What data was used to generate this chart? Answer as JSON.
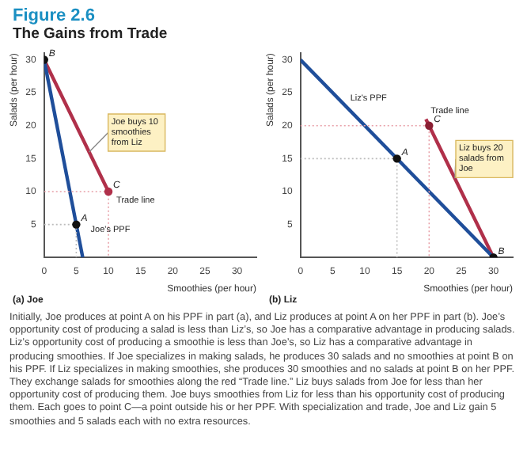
{
  "chart_data": [
    {
      "type": "line",
      "title": "Figure 2.6",
      "subtitle": "The Gains from Trade",
      "xlabel": "Smoothies (per hour)",
      "ylabel": "Salads (per hour)",
      "xlim": [
        0,
        33
      ],
      "ylim": [
        0,
        31
      ],
      "xticks": [
        0,
        5,
        10,
        15,
        20,
        25,
        30
      ],
      "yticks": [
        5,
        10,
        15,
        20,
        25,
        30
      ],
      "grid": false,
      "legend": false,
      "marker": "none",
      "series": [
        {
          "x": [
            0,
            5,
            5
          ],
          "values": [
            5,
            5,
            0
          ],
          "color": "#bbbbbb",
          "line_style": "dotted"
        },
        {
          "x": [
            0,
            10,
            10
          ],
          "values": [
            10,
            10,
            0
          ],
          "color": "#e8a0a8",
          "line_style": "dotted"
        },
        {
          "x": [
            0,
            6
          ],
          "values": [
            30,
            0
          ],
          "color": "#1f4e9a"
        },
        {
          "x": [
            0,
            10
          ],
          "values": [
            30,
            10
          ],
          "color": "#b0304a"
        },
        {
          "type": "scatter",
          "marker": "circle",
          "x": [
            5,
            0,
            10
          ],
          "values": [
            5,
            30,
            10
          ],
          "colors": [
            "#111111",
            "#111111",
            "#b0304a"
          ]
        }
      ],
      "annotations": [
        "(a) Joe",
        {
          "text": "A",
          "x": 5,
          "y": 5
        },
        {
          "text": "B",
          "x": 0,
          "y": 30
        },
        {
          "text": "C",
          "x": 10,
          "y": 10
        },
        {
          "text": "Joe buys 10 smoothies from Liz",
          "x": 7,
          "y": 16
        },
        {
          "text": "Trade line",
          "x": 10.5,
          "y": 7.5
        },
        {
          "text": "Joe's PPF",
          "x": 6.5,
          "y": 3
        }
      ]
    },
    {
      "type": "line",
      "xlabel": "Smoothies (per hour)",
      "ylabel": "Salads (per hour)",
      "xlim": [
        0,
        33
      ],
      "ylim": [
        0,
        31
      ],
      "xticks": [
        0,
        5,
        10,
        15,
        20,
        25,
        30
      ],
      "yticks": [
        5,
        10,
        15,
        20,
        25,
        30
      ],
      "grid": false,
      "legend": false,
      "marker": "none",
      "series": [
        {
          "x": [
            0,
            15,
            15
          ],
          "values": [
            15,
            15,
            0
          ],
          "color": "#bbbbbb",
          "line_style": "dotted"
        },
        {
          "x": [
            0,
            20,
            20
          ],
          "values": [
            20,
            20,
            0
          ],
          "color": "#e8a0a8",
          "line_style": "dotted"
        },
        {
          "x": [
            0,
            30
          ],
          "values": [
            30,
            0
          ],
          "color": "#1f4e9a"
        },
        {
          "x": [
            19.5,
            30
          ],
          "values": [
            21,
            0
          ],
          "color": "#b0304a"
        },
        {
          "type": "scatter",
          "marker": "circle",
          "x": [
            15,
            30,
            20
          ],
          "values": [
            15,
            0,
            20
          ],
          "colors": [
            "#111111",
            "#111111",
            "#8a1f33"
          ]
        }
      ],
      "annotations": [
        "(b) Liz",
        {
          "text": "A",
          "x": 15,
          "y": 15
        },
        {
          "text": "B",
          "x": 30,
          "y": 0
        },
        {
          "text": "C",
          "x": 20,
          "y": 20
        },
        {
          "text": "Liz buys 20 salads from Joe",
          "x": 24,
          "y": 12
        },
        {
          "text": "Trade line",
          "x": 19.5,
          "y": 21
        },
        {
          "text": "Liz's PPF",
          "x": 7,
          "y": 23
        }
      ]
    },
    {
      "type": "other",
      "annotations": [
        "Initially, Joe produces at point A on his PPF in part (a), and Liz produces at point A on her PPF in part (b). Joe’s opportunity cost of producing a salad is less than Liz’s, so Joe has a comparative advantage in producing salads. Liz’s opportunity cost of producing a smoothie is less than Joe’s, so Liz has a comparative advantage in producing smoothies. If Joe specializes in making salads, he produces 30 salads and no smoothies at point B on his PPF. If Liz specializes in making smoothies, she produces 30 smoothies and no salads at point B on her PPF. They exchange salads for smoothies along the red “Trade line.” Liz buys salads from Joe for less than her opportunity cost of producing them. Joe buys smoothies from Liz for less than his opportunity cost of producing them. Each goes to point C—a point outside his or her PPF. With specialization and trade, Joe and Liz gain 5 smoothies and 5 salads each with no extra resources."
      ]
    }
  ]
}
